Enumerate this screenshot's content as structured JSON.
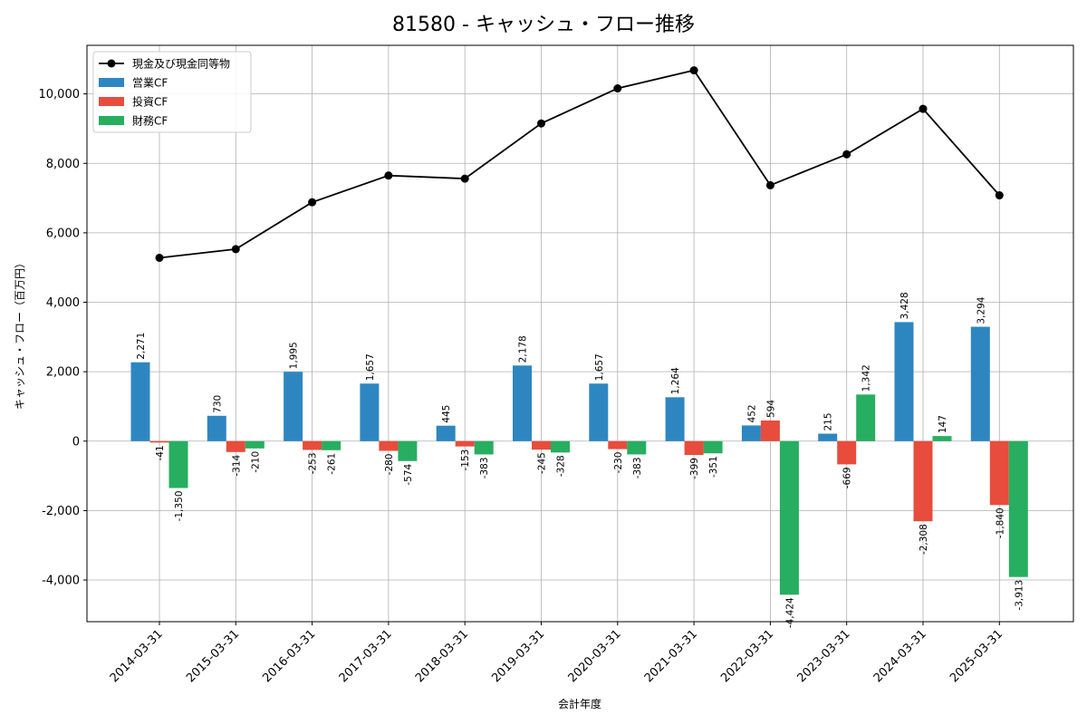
{
  "chart_data": {
    "type": "bar",
    "title": "81580 - キャッシュ・フロー推移",
    "xlabel": "会計年度",
    "ylabel": "キャッシュ・フロー（百万円）",
    "ylim": [
      -5200,
      11400
    ],
    "yticks": [
      -4000,
      -2000,
      0,
      2000,
      4000,
      6000,
      8000,
      10000
    ],
    "ytick_labels": [
      "-4,000",
      "-2,000",
      "0",
      "2,000",
      "4,000",
      "6,000",
      "8,000",
      "10,000"
    ],
    "grid": true,
    "legend_position": "top-left",
    "categories": [
      "2014-03-31",
      "2015-03-31",
      "2016-03-31",
      "2017-03-31",
      "2018-03-31",
      "2019-03-31",
      "2020-03-31",
      "2021-03-31",
      "2022-03-31",
      "2023-03-31",
      "2024-03-31",
      "2025-03-31"
    ],
    "series": [
      {
        "name": "営業CF",
        "kind": "bar",
        "color": "#2e86c1",
        "values": [
          2271,
          730,
          1995,
          1657,
          445,
          2178,
          1657,
          1264,
          452,
          215,
          3428,
          3294
        ],
        "labels": [
          "2,271",
          "730",
          "1,995",
          "1,657",
          "445",
          "2,178",
          "1,657",
          "1,264",
          "452",
          "215",
          "3,428",
          "3,294"
        ]
      },
      {
        "name": "投資CF",
        "kind": "bar",
        "color": "#e74c3c",
        "values": [
          -41,
          -314,
          -253,
          -280,
          -153,
          -245,
          -230,
          -399,
          594,
          -669,
          -2308,
          -1840
        ],
        "labels": [
          "-41",
          "-314",
          "-253",
          "-280",
          "-153",
          "-245",
          "-230",
          "-399",
          "594",
          "-669",
          "-2,308",
          "-1,840"
        ]
      },
      {
        "name": "財務CF",
        "kind": "bar",
        "color": "#27ae60",
        "values": [
          -1350,
          -210,
          -261,
          -574,
          -383,
          -328,
          -383,
          -351,
          -4424,
          1342,
          147,
          -3913
        ],
        "labels": [
          "-1,350",
          "-210",
          "-261",
          "-574",
          "-383",
          "-328",
          "-383",
          "-351",
          "-4,424",
          "1,342",
          "147",
          "-3,913"
        ]
      },
      {
        "name": "現金及び現金同等物",
        "kind": "line",
        "color": "#000000",
        "values": [
          5280,
          5530,
          6880,
          7650,
          7560,
          9150,
          10160,
          10680,
          7370,
          8260,
          9570,
          7080
        ]
      }
    ]
  }
}
